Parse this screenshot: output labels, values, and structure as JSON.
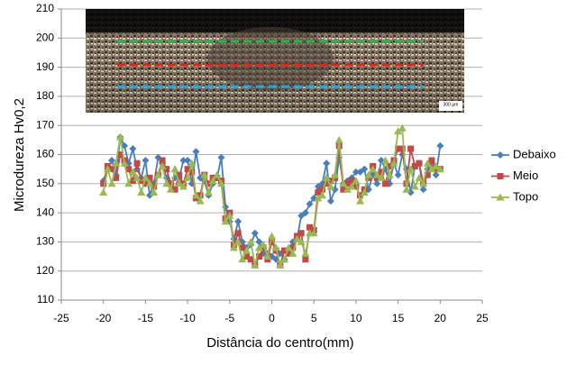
{
  "chart_data": {
    "type": "line",
    "y_label": "Microdureza Hv0,2",
    "x_label": "Distância do centro(mm)",
    "inset_label": "300 µm",
    "x": [
      -20,
      -19.5,
      -19,
      -18.5,
      -18,
      -17.5,
      -17,
      -16.5,
      -16,
      -15.5,
      -15,
      -14.5,
      -14,
      -13.5,
      -13,
      -12.5,
      -12,
      -11.5,
      -11,
      -10.5,
      -10,
      -9.5,
      -9,
      -8.5,
      -8,
      -7.5,
      -7,
      -6.5,
      -6,
      -5.5,
      -5,
      -4.5,
      -4,
      -3.5,
      -3,
      -2.5,
      -2,
      -1.5,
      -1,
      -0.5,
      0,
      0.5,
      1,
      1.5,
      2,
      2.5,
      3,
      3.5,
      4,
      4.5,
      5,
      5.5,
      6,
      6.5,
      7,
      7.5,
      8,
      8.5,
      9,
      9.5,
      10,
      10.5,
      11,
      11.5,
      12,
      12.5,
      13,
      13.5,
      14,
      14.5,
      15,
      15.5,
      16,
      16.5,
      17,
      17.5,
      18,
      18.5,
      19,
      19.5,
      20
    ],
    "series": [
      {
        "name": "Debaixo",
        "color": "#4a7ebb",
        "marker": "diamond",
        "values": [
          151,
          155,
          158,
          153,
          166,
          163,
          157,
          162,
          155,
          152,
          158,
          146,
          150,
          159,
          157,
          152,
          150,
          152,
          152,
          158,
          158,
          150,
          161,
          152,
          151,
          146,
          150,
          152,
          159,
          142,
          137,
          131,
          137,
          130,
          128,
          129,
          133,
          130,
          126,
          126,
          125,
          124,
          126,
          124,
          127,
          130,
          131,
          139,
          140,
          143,
          145,
          149,
          150,
          157,
          144,
          148,
          159,
          150,
          151,
          152,
          154,
          154,
          155,
          148,
          153,
          150,
          158,
          155,
          150,
          157,
          153,
          160,
          155,
          147,
          156,
          157,
          148,
          155,
          157,
          153,
          163
        ]
      },
      {
        "name": "Meio",
        "color": "#be4b48",
        "marker": "square",
        "values": [
          150,
          156,
          155,
          152,
          160,
          158,
          155,
          151,
          157,
          151,
          150,
          152,
          149,
          153,
          158,
          155,
          150,
          148,
          153,
          150,
          155,
          154,
          145,
          146,
          153,
          150,
          152,
          152,
          151,
          138,
          140,
          129,
          133,
          128,
          125,
          124,
          122,
          125,
          128,
          124,
          130,
          127,
          122,
          127,
          126,
          128,
          132,
          133,
          124,
          135,
          134,
          147,
          148,
          150,
          151,
          152,
          163,
          148,
          150,
          151,
          149,
          146,
          148,
          152,
          156,
          152,
          154,
          150,
          156,
          158,
          162,
          162,
          150,
          162,
          156,
          157,
          150,
          153,
          158,
          155,
          155
        ]
      },
      {
        "name": "Topo",
        "color": "#98b954",
        "marker": "triangle",
        "values": [
          147,
          155,
          150,
          157,
          166,
          157,
          150,
          154,
          152,
          147,
          152,
          150,
          147,
          153,
          156,
          150,
          148,
          155,
          150,
          149,
          152,
          157,
          146,
          144,
          153,
          147,
          151,
          153,
          150,
          137,
          139,
          128,
          130,
          124,
          127,
          130,
          122,
          128,
          129,
          125,
          132,
          128,
          122,
          124,
          128,
          126,
          131,
          130,
          126,
          133,
          133,
          145,
          146,
          152,
          149,
          153,
          165,
          150,
          148,
          149,
          151,
          144,
          147,
          153,
          155,
          153,
          152,
          158,
          153,
          157,
          168,
          169,
          148,
          155,
          149,
          152,
          150,
          157,
          155,
          156,
          155
        ]
      }
    ],
    "xlim": [
      -25,
      25
    ],
    "xticks": [
      -25,
      -20,
      -15,
      -10,
      -5,
      0,
      5,
      10,
      15,
      20,
      25
    ],
    "ylim": [
      110,
      210
    ],
    "yticks": [
      110,
      120,
      130,
      140,
      150,
      160,
      170,
      180,
      190,
      200,
      210
    ],
    "grid": true,
    "legend": "right"
  }
}
